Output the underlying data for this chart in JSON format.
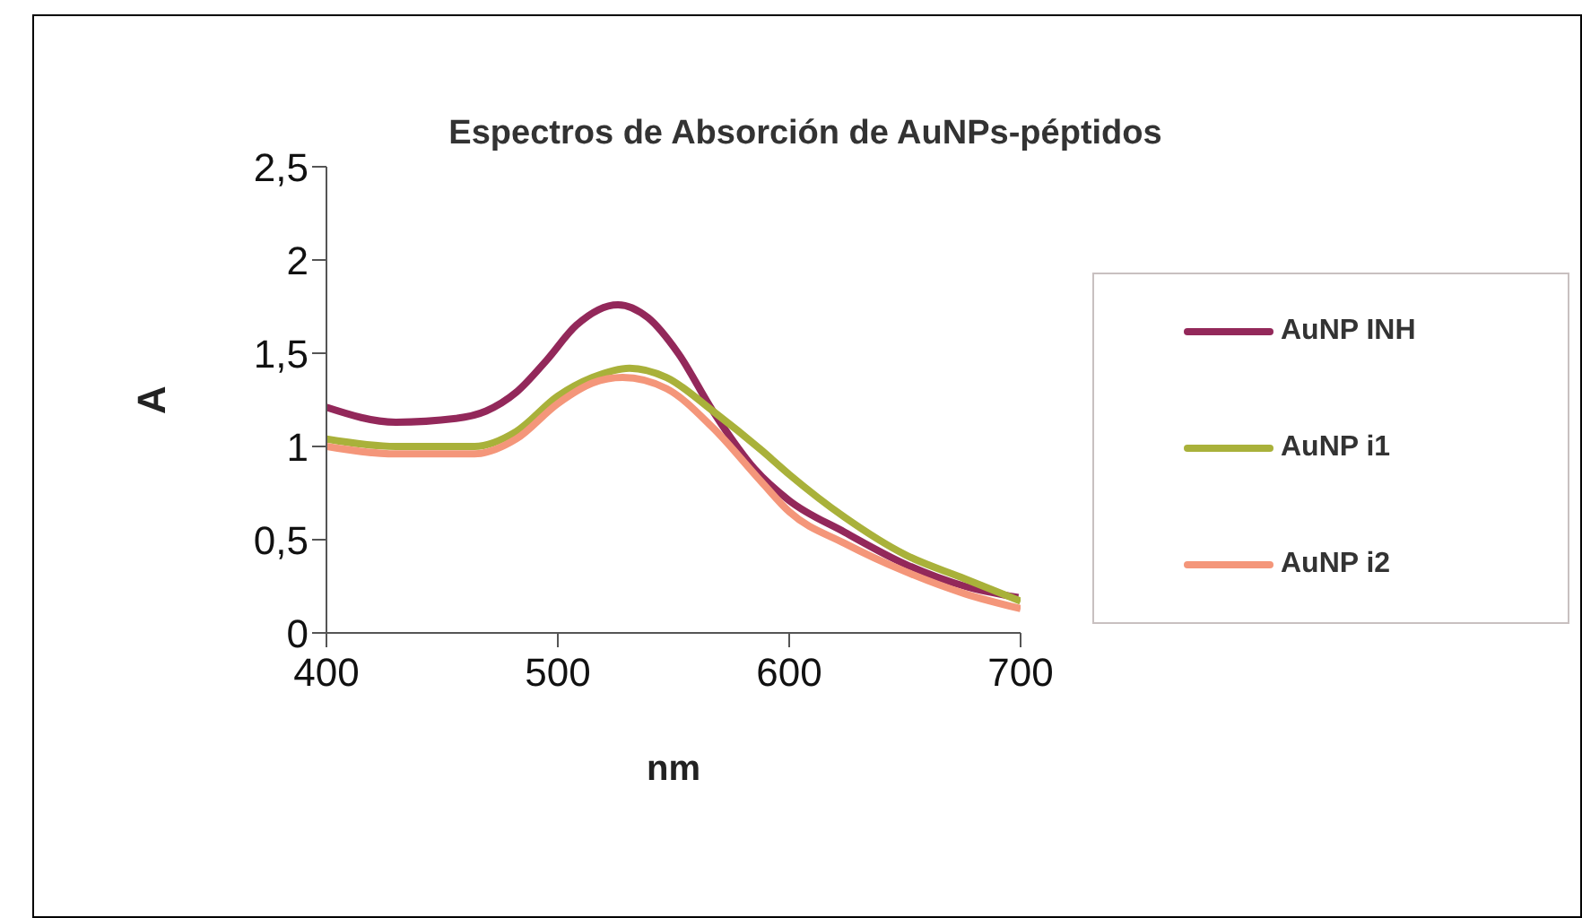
{
  "chart_data": {
    "type": "line",
    "title": "Espectros de Absorción de AuNPs-péptidos",
    "xlabel": "nm",
    "ylabel": "A",
    "xlim": [
      400,
      700
    ],
    "xticks": [
      400,
      500,
      600,
      700
    ],
    "ylim": [
      0,
      2.5
    ],
    "yticks": [
      {
        "value": 0,
        "label": "0"
      },
      {
        "value": 0.5,
        "label": "0,5"
      },
      {
        "value": 1,
        "label": "1"
      },
      {
        "value": 1.5,
        "label": "1,5"
      },
      {
        "value": 2,
        "label": "2"
      },
      {
        "value": 2.5,
        "label": "2,5"
      }
    ],
    "legend": "right",
    "grid": false,
    "series": [
      {
        "name": "AuNP INH",
        "color": "#93285a",
        "x": [
          400,
          430,
          456,
          469,
          482,
          495,
          508,
          526,
          539,
          552,
          567,
          585,
          600,
          624,
          650,
          676,
          699
        ],
        "values": [
          1.21,
          1.13,
          1.15,
          1.19,
          1.29,
          1.46,
          1.65,
          1.76,
          1.69,
          1.5,
          1.19,
          0.88,
          0.71,
          0.54,
          0.37,
          0.25,
          0.19
        ]
      },
      {
        "name": "AuNP i1",
        "color": "#a9b13a",
        "x": [
          400,
          430,
          464,
          482,
          500,
          515,
          531,
          547,
          567,
          588,
          600,
          624,
          650,
          676,
          700
        ],
        "values": [
          1.04,
          1.0,
          1.0,
          1.08,
          1.27,
          1.37,
          1.42,
          1.37,
          1.19,
          0.98,
          0.85,
          0.62,
          0.42,
          0.29,
          0.17
        ]
      },
      {
        "name": "AuNP i2",
        "color": "#f4967a",
        "x": [
          400,
          430,
          464,
          482,
          500,
          515,
          528,
          547,
          567,
          588,
          600,
          624,
          650,
          676,
          700
        ],
        "values": [
          1.0,
          0.96,
          0.96,
          1.04,
          1.23,
          1.34,
          1.37,
          1.31,
          1.1,
          0.81,
          0.65,
          0.48,
          0.33,
          0.21,
          0.13
        ]
      }
    ]
  }
}
